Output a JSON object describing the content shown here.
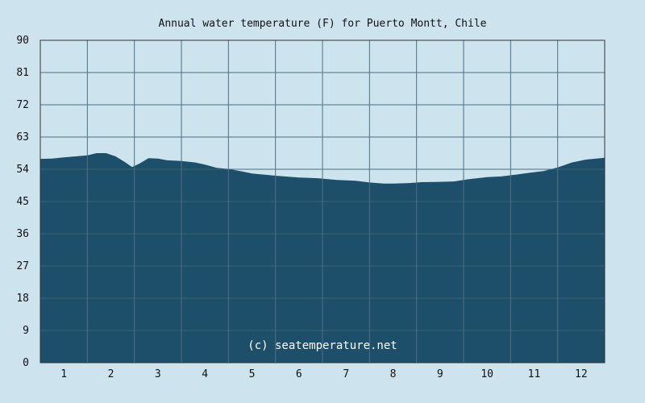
{
  "chart_data": {
    "type": "area",
    "title": "Annual water temperature (F) for Puerto Montt, Chile",
    "xlabel": "",
    "ylabel": "",
    "x_ticks": [
      "1",
      "2",
      "3",
      "4",
      "5",
      "6",
      "7",
      "8",
      "9",
      "10",
      "11",
      "12"
    ],
    "y_ticks": [
      "0",
      "9",
      "18",
      "27",
      "36",
      "45",
      "54",
      "63",
      "72",
      "81",
      "90"
    ],
    "ylim": [
      0,
      90
    ],
    "xlim": [
      0.5,
      12.5
    ],
    "grid": true,
    "watermark": "(c) seatemperature.net",
    "colors": {
      "background": "#cde3ee",
      "fill": "#1e4f6a",
      "grid": "#4c6f86",
      "axis": "#333333"
    },
    "series": [
      {
        "x": [
          0.5,
          0.75,
          1.0,
          1.25,
          1.5,
          1.7,
          1.9,
          2.1,
          2.3,
          2.45,
          2.6,
          2.8,
          3.0,
          3.2,
          3.5,
          3.8,
          4.0,
          4.25,
          4.5,
          4.75,
          5.0,
          5.5,
          6.0,
          6.4,
          6.8,
          7.2,
          7.5,
          7.8,
          8.0,
          8.3,
          8.6,
          9.0,
          9.3,
          9.6,
          10.0,
          10.3,
          10.6,
          10.9,
          11.2,
          11.5,
          11.8,
          12.1,
          12.5
        ],
        "values": [
          56.9,
          57.0,
          57.3,
          57.6,
          57.9,
          58.5,
          58.5,
          57.6,
          56.0,
          54.6,
          55.5,
          57.1,
          57.0,
          56.5,
          56.3,
          55.9,
          55.3,
          54.4,
          54.1,
          53.5,
          52.8,
          52.2,
          51.7,
          51.5,
          51.0,
          50.8,
          50.3,
          50.0,
          50.0,
          50.1,
          50.4,
          50.5,
          50.6,
          51.2,
          51.8,
          52.0,
          52.5,
          53.0,
          53.5,
          54.5,
          55.9,
          56.7,
          57.2
        ]
      }
    ]
  }
}
